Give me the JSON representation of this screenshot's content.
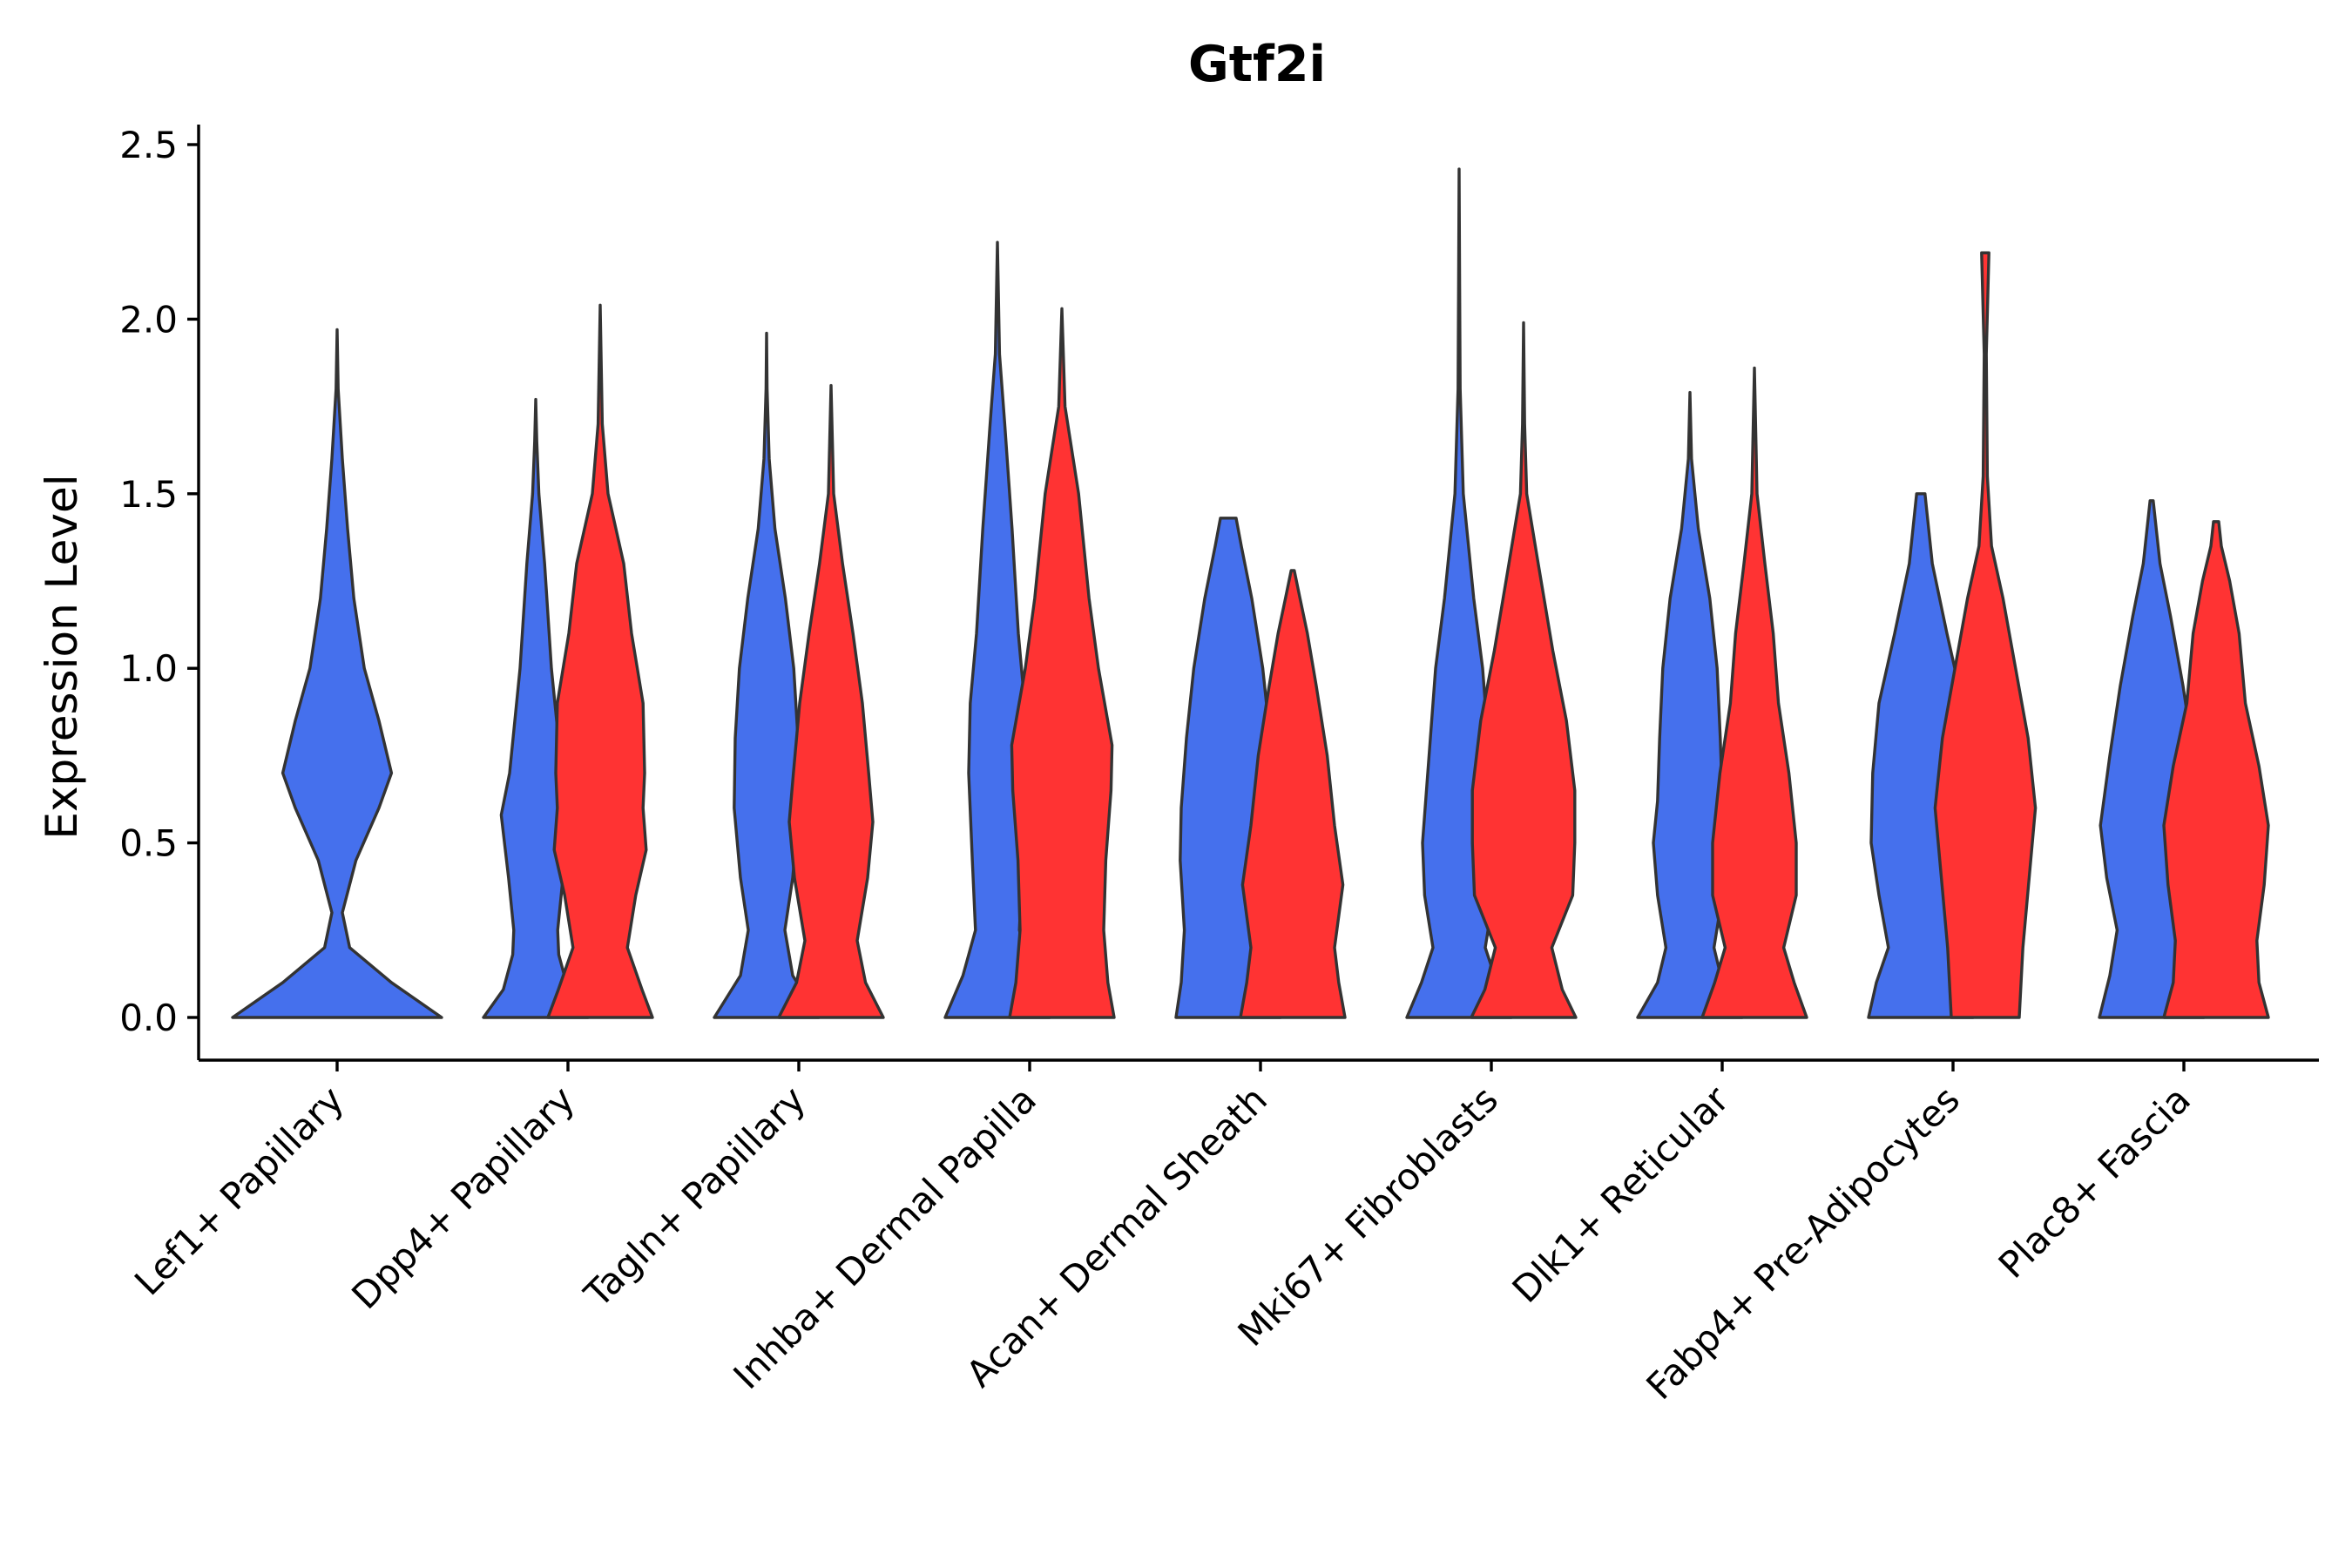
{
  "chart_data": {
    "type": "violin",
    "title": "Gtf2i",
    "xlabel": "",
    "ylabel": "Expression Level",
    "ylim": [
      -0.12,
      2.56
    ],
    "yticks": [
      "0.0",
      "0.5",
      "1.0",
      "1.5",
      "2.0",
      "2.5"
    ],
    "legend": "none",
    "colors": {
      "blue": "#4570ED",
      "red": "#FF3333",
      "outline": "#333333",
      "axis": "#000000"
    },
    "categories": [
      "Lef1+ Papillary",
      "Dpp4+ Papillary",
      "Tagln+ Papillary",
      "Inhba+ Dermal Papilla",
      "Acan+ Dermal Sheath",
      "Mki67+ Fibroblasts",
      "Dlk1+ Reticular",
      "Fabp4+ Pre-Adipocytes",
      "Plac8+ Fascia"
    ],
    "violins": [
      {
        "category": "Lef1+ Papillary",
        "group": "blue",
        "max": 1.97,
        "density": [
          [
            0,
            1.0
          ],
          [
            0.1,
            0.52
          ],
          [
            0.2,
            0.12
          ],
          [
            0.3,
            0.05
          ],
          [
            0.45,
            0.18
          ],
          [
            0.6,
            0.4
          ],
          [
            0.7,
            0.52
          ],
          [
            0.85,
            0.4
          ],
          [
            1.0,
            0.26
          ],
          [
            1.2,
            0.16
          ],
          [
            1.4,
            0.1
          ],
          [
            1.6,
            0.05
          ],
          [
            1.8,
            0.01
          ],
          [
            1.97,
            0.0
          ]
        ]
      },
      {
        "category": "Dpp4+ Papillary",
        "group": "blue",
        "max": 1.77,
        "density": [
          [
            0,
            1.0
          ],
          [
            0.08,
            0.62
          ],
          [
            0.18,
            0.44
          ],
          [
            0.25,
            0.42
          ],
          [
            0.4,
            0.52
          ],
          [
            0.58,
            0.66
          ],
          [
            0.7,
            0.5
          ],
          [
            1.0,
            0.3
          ],
          [
            1.3,
            0.17
          ],
          [
            1.5,
            0.06
          ],
          [
            1.65,
            0.02
          ],
          [
            1.77,
            0.0
          ]
        ]
      },
      {
        "category": "Dpp4+ Papillary",
        "group": "red",
        "max": 2.04,
        "density": [
          [
            0,
            1.0
          ],
          [
            0.08,
            0.8
          ],
          [
            0.2,
            0.52
          ],
          [
            0.35,
            0.68
          ],
          [
            0.48,
            0.88
          ],
          [
            0.6,
            0.82
          ],
          [
            0.7,
            0.85
          ],
          [
            0.9,
            0.82
          ],
          [
            1.1,
            0.6
          ],
          [
            1.3,
            0.45
          ],
          [
            1.5,
            0.15
          ],
          [
            1.7,
            0.04
          ],
          [
            2.04,
            0.0
          ]
        ]
      },
      {
        "category": "Tagln+ Papillary",
        "group": "blue",
        "max": 1.96,
        "density": [
          [
            0,
            1.0
          ],
          [
            0.12,
            0.5
          ],
          [
            0.25,
            0.35
          ],
          [
            0.4,
            0.5
          ],
          [
            0.6,
            0.62
          ],
          [
            0.8,
            0.6
          ],
          [
            1.0,
            0.52
          ],
          [
            1.2,
            0.36
          ],
          [
            1.4,
            0.16
          ],
          [
            1.6,
            0.05
          ],
          [
            1.8,
            0.01
          ],
          [
            1.96,
            0.0
          ]
        ]
      },
      {
        "category": "Tagln+ Papillary",
        "group": "red",
        "max": 1.81,
        "density": [
          [
            0,
            1.0
          ],
          [
            0.1,
            0.66
          ],
          [
            0.22,
            0.5
          ],
          [
            0.4,
            0.7
          ],
          [
            0.56,
            0.8
          ],
          [
            0.7,
            0.72
          ],
          [
            0.9,
            0.6
          ],
          [
            1.1,
            0.42
          ],
          [
            1.3,
            0.22
          ],
          [
            1.5,
            0.05
          ],
          [
            1.81,
            0.0
          ]
        ]
      },
      {
        "category": "Inhba+ Dermal Papilla",
        "group": "blue",
        "max": 2.22,
        "density": [
          [
            0,
            1.0
          ],
          [
            0.12,
            0.66
          ],
          [
            0.25,
            0.42
          ],
          [
            0.45,
            0.48
          ],
          [
            0.7,
            0.55
          ],
          [
            0.9,
            0.52
          ],
          [
            1.1,
            0.4
          ],
          [
            1.4,
            0.28
          ],
          [
            1.7,
            0.14
          ],
          [
            1.9,
            0.04
          ],
          [
            2.22,
            0.0
          ]
        ]
      },
      {
        "category": "Inhba+ Dermal Papilla",
        "group": "red",
        "max": 2.03,
        "density": [
          [
            0,
            1.0
          ],
          [
            0.1,
            0.88
          ],
          [
            0.25,
            0.8
          ],
          [
            0.45,
            0.84
          ],
          [
            0.65,
            0.94
          ],
          [
            0.78,
            0.96
          ],
          [
            1.0,
            0.7
          ],
          [
            1.2,
            0.52
          ],
          [
            1.5,
            0.32
          ],
          [
            1.75,
            0.06
          ],
          [
            2.03,
            0.0
          ]
        ]
      },
      {
        "category": "Acan+ Dermal Sheath",
        "group": "blue",
        "max": 1.43,
        "density": [
          [
            0,
            1.0
          ],
          [
            0.1,
            0.9
          ],
          [
            0.25,
            0.84
          ],
          [
            0.45,
            0.92
          ],
          [
            0.6,
            0.9
          ],
          [
            0.8,
            0.8
          ],
          [
            1.0,
            0.66
          ],
          [
            1.2,
            0.45
          ],
          [
            1.35,
            0.25
          ],
          [
            1.43,
            0.15
          ]
        ]
      },
      {
        "category": "Acan+ Dermal Sheath",
        "group": "red",
        "max": 1.28,
        "density": [
          [
            0,
            1.0
          ],
          [
            0.1,
            0.88
          ],
          [
            0.2,
            0.8
          ],
          [
            0.38,
            0.96
          ],
          [
            0.55,
            0.8
          ],
          [
            0.75,
            0.66
          ],
          [
            0.95,
            0.45
          ],
          [
            1.1,
            0.28
          ],
          [
            1.2,
            0.14
          ],
          [
            1.28,
            0.03
          ]
        ]
      },
      {
        "category": "Mki67+ Fibroblasts",
        "group": "blue",
        "max": 2.43,
        "density": [
          [
            0,
            1.0
          ],
          [
            0.1,
            0.72
          ],
          [
            0.2,
            0.5
          ],
          [
            0.35,
            0.66
          ],
          [
            0.5,
            0.7
          ],
          [
            0.7,
            0.6
          ],
          [
            1.0,
            0.45
          ],
          [
            1.2,
            0.28
          ],
          [
            1.5,
            0.08
          ],
          [
            1.8,
            0.02
          ],
          [
            2.1,
            0.01
          ],
          [
            2.43,
            0.0
          ]
        ]
      },
      {
        "category": "Mki67+ Fibroblasts",
        "group": "red",
        "max": 1.99,
        "density": [
          [
            0,
            1.0
          ],
          [
            0.08,
            0.74
          ],
          [
            0.2,
            0.54
          ],
          [
            0.35,
            0.94
          ],
          [
            0.5,
            0.98
          ],
          [
            0.65,
            0.98
          ],
          [
            0.85,
            0.82
          ],
          [
            1.05,
            0.56
          ],
          [
            1.3,
            0.28
          ],
          [
            1.5,
            0.06
          ],
          [
            1.7,
            0.02
          ],
          [
            1.99,
            0.0
          ]
        ]
      },
      {
        "category": "Dlk1+ Reticular",
        "group": "blue",
        "max": 1.79,
        "density": [
          [
            0,
            1.0
          ],
          [
            0.1,
            0.62
          ],
          [
            0.2,
            0.46
          ],
          [
            0.35,
            0.62
          ],
          [
            0.5,
            0.7
          ],
          [
            0.62,
            0.62
          ],
          [
            0.8,
            0.58
          ],
          [
            1.0,
            0.52
          ],
          [
            1.2,
            0.38
          ],
          [
            1.4,
            0.16
          ],
          [
            1.6,
            0.03
          ],
          [
            1.79,
            0.0
          ]
        ]
      },
      {
        "category": "Dlk1+ Reticular",
        "group": "red",
        "max": 1.86,
        "density": [
          [
            0,
            1.0
          ],
          [
            0.1,
            0.76
          ],
          [
            0.2,
            0.56
          ],
          [
            0.35,
            0.8
          ],
          [
            0.5,
            0.8
          ],
          [
            0.7,
            0.66
          ],
          [
            0.9,
            0.46
          ],
          [
            1.1,
            0.36
          ],
          [
            1.3,
            0.2
          ],
          [
            1.5,
            0.05
          ],
          [
            1.86,
            0.0
          ]
        ]
      },
      {
        "category": "Fabp4+ Pre-Adipocytes",
        "group": "blue",
        "max": 1.5,
        "density": [
          [
            0,
            1.0
          ],
          [
            0.1,
            0.85
          ],
          [
            0.2,
            0.62
          ],
          [
            0.35,
            0.8
          ],
          [
            0.5,
            0.95
          ],
          [
            0.7,
            0.92
          ],
          [
            0.9,
            0.8
          ],
          [
            1.1,
            0.5
          ],
          [
            1.3,
            0.22
          ],
          [
            1.5,
            0.08
          ]
        ]
      },
      {
        "category": "Fabp4+ Pre-Adipocytes",
        "group": "red",
        "max": 2.19,
        "density": [
          [
            0,
            0.65
          ],
          [
            0.2,
            0.72
          ],
          [
            0.4,
            0.84
          ],
          [
            0.6,
            0.96
          ],
          [
            0.8,
            0.82
          ],
          [
            1.0,
            0.58
          ],
          [
            1.2,
            0.34
          ],
          [
            1.35,
            0.12
          ],
          [
            1.55,
            0.04
          ],
          [
            1.9,
            0.02
          ],
          [
            2.19,
            0.07
          ]
        ]
      },
      {
        "category": "Plac8+ Fascia",
        "group": "blue",
        "max": 1.48,
        "density": [
          [
            0,
            1.0
          ],
          [
            0.12,
            0.8
          ],
          [
            0.25,
            0.66
          ],
          [
            0.4,
            0.86
          ],
          [
            0.55,
            0.98
          ],
          [
            0.75,
            0.8
          ],
          [
            0.95,
            0.6
          ],
          [
            1.15,
            0.36
          ],
          [
            1.3,
            0.16
          ],
          [
            1.48,
            0.03
          ]
        ]
      },
      {
        "category": "Plac8+ Fascia",
        "group": "red",
        "max": 1.42,
        "density": [
          [
            0,
            1.0
          ],
          [
            0.1,
            0.82
          ],
          [
            0.22,
            0.78
          ],
          [
            0.38,
            0.92
          ],
          [
            0.55,
            1.0
          ],
          [
            0.72,
            0.82
          ],
          [
            0.9,
            0.56
          ],
          [
            1.1,
            0.44
          ],
          [
            1.25,
            0.26
          ],
          [
            1.35,
            0.1
          ],
          [
            1.42,
            0.05
          ]
        ]
      }
    ]
  }
}
